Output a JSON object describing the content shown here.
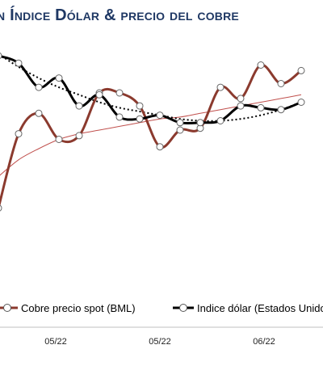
{
  "title": "n Índice Dólar & precio del cobre",
  "chart_data": {
    "type": "line",
    "title": "n Índice Dólar & precio del cobre",
    "xlabel": "",
    "ylabel": "",
    "x_ticks": [
      "05/22",
      "05/22",
      "06/22"
    ],
    "ylim": [
      0,
      100
    ],
    "grid": false,
    "legend_position": "bottom",
    "x": [
      1,
      2,
      3,
      4,
      5,
      6,
      7,
      8,
      9,
      10,
      11,
      12,
      13,
      14,
      15,
      16
    ],
    "series": [
      {
        "name": "Cobre precio spot (BML)",
        "color": "#8b3a2e",
        "values": [
          18,
          58,
          69,
          55,
          57,
          80,
          80,
          73,
          51,
          60,
          61,
          83,
          77,
          95,
          85,
          92
        ],
        "trend": [
          35,
          44,
          50,
          55,
          58,
          60,
          62,
          64,
          66,
          67,
          69,
          71,
          73,
          75,
          77,
          79
        ]
      },
      {
        "name": "Indice dólar (Estados Unidos)",
        "color": "#000000",
        "values": [
          100,
          96,
          83,
          88,
          73,
          79,
          67,
          66,
          68,
          64,
          64,
          65,
          73,
          72,
          71,
          75
        ],
        "trend": [
          101,
          94,
          88,
          83,
          79,
          75,
          72,
          70,
          68,
          66,
          65,
          65,
          66,
          68,
          71,
          75
        ]
      }
    ]
  },
  "colors": {
    "title": "#1f3864",
    "axis": "#bfbfbf"
  }
}
